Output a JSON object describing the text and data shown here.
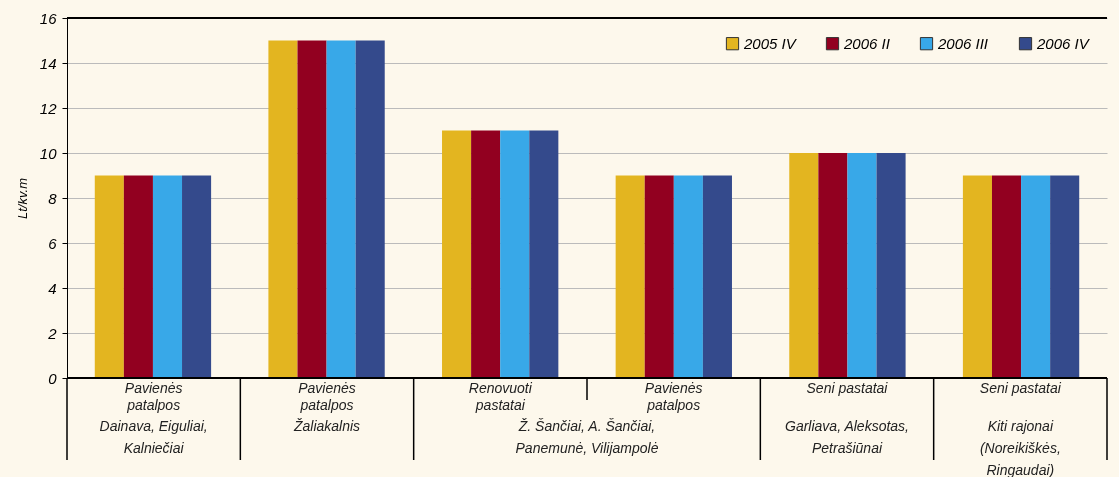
{
  "chart_data": {
    "type": "bar",
    "ylabel": "Lt/kv.m",
    "categories": [
      "Pavienės patalpos",
      "Pavienės patalpos",
      "Renovuoti pastatai",
      "Pavienės patalpos",
      "Seni pastatai",
      "Seni pastatai"
    ],
    "series": [
      {
        "name": "2005 IV",
        "color": "#e3b520",
        "values": [
          9,
          15,
          11,
          9,
          10,
          9
        ]
      },
      {
        "name": "2006 II",
        "color": "#920020",
        "values": [
          9,
          15,
          11,
          9,
          10,
          9
        ]
      },
      {
        "name": "2006 III",
        "color": "#38a8e8",
        "values": [
          9,
          15,
          11,
          9,
          10,
          9
        ]
      },
      {
        "name": "2006 IV",
        "color": "#344a8c",
        "values": [
          9,
          15,
          11,
          9,
          10,
          9
        ]
      }
    ],
    "ylim": [
      0,
      16
    ],
    "yticks": [
      0,
      2,
      4,
      6,
      8,
      10,
      12,
      14,
      16
    ],
    "grid": "y",
    "legend": "top right",
    "annotations": [
      "Dainava, Eiguliai, Kalniečiai",
      "Žaliakalnis",
      "Ž. Šančiai, A. Šančiai, Panemunė, Vilijampolė",
      "Garliava, Aleksotas, Petrašiūnai",
      "Kiti rajonai (Noreikiškės, Ringaudai)"
    ]
  }
}
